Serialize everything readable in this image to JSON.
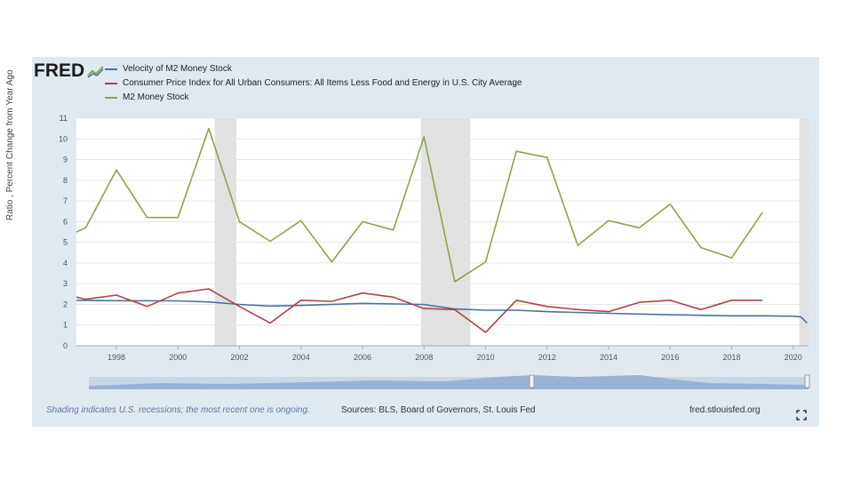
{
  "logo": {
    "text": "FRED"
  },
  "legend": [
    {
      "label": "Velocity of M2 Money Stock",
      "color": "#4572a7"
    },
    {
      "label": "Consumer Price Index for All Urban Consumers: All Items Less Food and Energy in U.S. City Average",
      "color": "#aa4643"
    },
    {
      "label": "M2 Money Stock",
      "color": "#89a54e"
    }
  ],
  "footer": {
    "note": "Shading indicates U.S. recessions; the most recent one is ongoing.",
    "sources": "Sources: BLS, Board of Governors, St. Louis Fed",
    "url": "fred.stlouisfed.org"
  },
  "chart_data": {
    "type": "line",
    "ylabel": "Ratio , Percent Change from Year Ago",
    "xlim": [
      1996.7,
      2020.5
    ],
    "ylim": [
      0,
      11
    ],
    "y_ticks": [
      0,
      1,
      2,
      3,
      4,
      5,
      6,
      7,
      8,
      9,
      10,
      11
    ],
    "x_ticks": [
      1998,
      2000,
      2002,
      2004,
      2006,
      2008,
      2010,
      2012,
      2014,
      2016,
      2018,
      2020
    ],
    "recessions": [
      [
        2001.2,
        2001.9
      ],
      [
        2007.9,
        2009.5
      ],
      [
        2020.2,
        2020.5
      ]
    ],
    "series": [
      {
        "name": "Velocity of M2 Money Stock",
        "color": "#4572a7",
        "x": [
          1996.7,
          1998,
          2000,
          2001,
          2002,
          2003,
          2004,
          2006,
          2008,
          2009,
          2010,
          2011,
          2012,
          2014,
          2016,
          2018,
          2019,
          2020,
          2020.25,
          2020.45
        ],
        "y": [
          2.2,
          2.18,
          2.17,
          2.12,
          2.0,
          1.92,
          1.95,
          2.05,
          2.0,
          1.78,
          1.72,
          1.72,
          1.65,
          1.57,
          1.5,
          1.45,
          1.45,
          1.43,
          1.4,
          1.1
        ]
      },
      {
        "name": "Consumer Price Index for All Urban Consumers: All Items Less Food and Energy in U.S. City Average",
        "color": "#aa4643",
        "x": [
          1996.7,
          1997,
          1998,
          1999,
          2000,
          2001,
          2002,
          2003,
          2004,
          2005,
          2006,
          2007,
          2008,
          2009,
          2010,
          2011,
          2012,
          2013,
          2014,
          2015,
          2016,
          2017,
          2018,
          2019
        ],
        "y": [
          2.35,
          2.25,
          2.45,
          1.9,
          2.55,
          2.75,
          1.9,
          1.1,
          2.2,
          2.15,
          2.55,
          2.35,
          1.8,
          1.75,
          0.65,
          2.2,
          1.9,
          1.75,
          1.65,
          2.1,
          2.2,
          1.75,
          2.2,
          2.2
        ]
      },
      {
        "name": "M2 Money Stock",
        "color": "#89a54e",
        "x": [
          1996.7,
          1997,
          1998,
          1999,
          2000,
          2001,
          2002,
          2003,
          2004,
          2005,
          2006,
          2007,
          2008,
          2009,
          2010,
          2011,
          2012,
          2013,
          2014,
          2015,
          2016,
          2017,
          2018,
          2019
        ],
        "y": [
          5.5,
          5.7,
          8.5,
          6.2,
          6.2,
          10.5,
          6.0,
          5.05,
          6.05,
          4.05,
          6.0,
          5.6,
          10.1,
          3.1,
          4.05,
          9.4,
          9.1,
          4.85,
          6.05,
          5.7,
          6.85,
          4.75,
          4.25,
          6.45
        ]
      }
    ]
  }
}
